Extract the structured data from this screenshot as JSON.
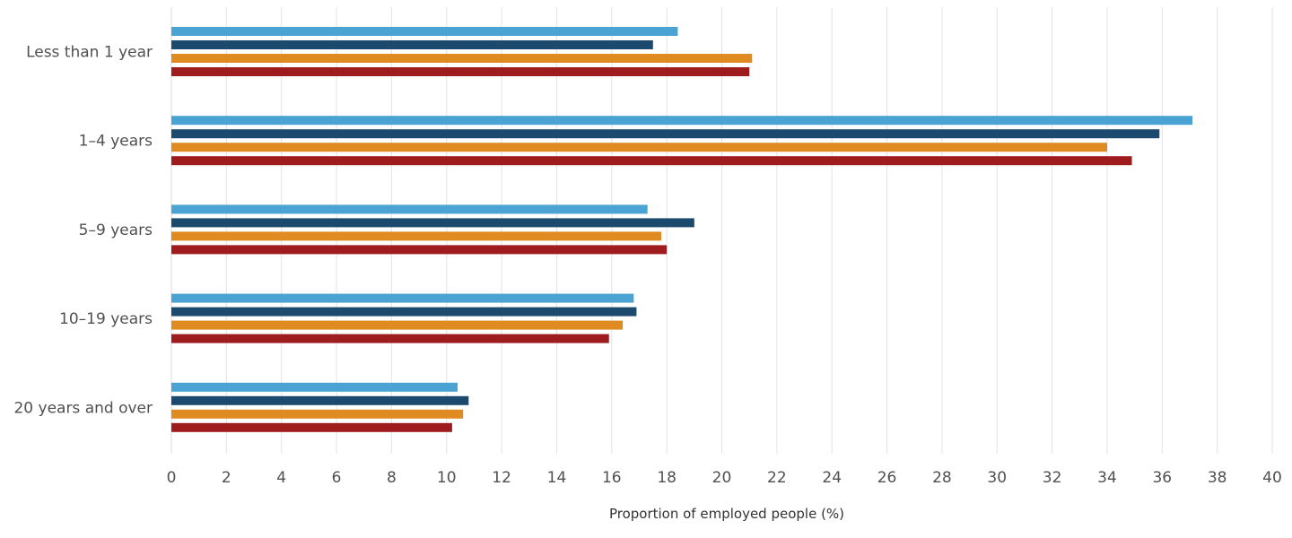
{
  "chart_data": {
    "type": "bar",
    "orientation": "horizontal",
    "categories": [
      "Less than 1 year",
      "1–4 years",
      "5–9 years",
      "10–19 years",
      "20 years and over"
    ],
    "series": [
      {
        "color": "#4aa3d3",
        "values": [
          18.4,
          37.1,
          17.3,
          16.8,
          10.4
        ]
      },
      {
        "color": "#1b4a6e",
        "values": [
          17.5,
          35.9,
          19.0,
          16.9,
          10.8
        ]
      },
      {
        "color": "#e08a22",
        "values": [
          21.1,
          34.0,
          17.8,
          16.4,
          10.6
        ]
      },
      {
        "color": "#9e1b1e",
        "values": [
          21.0,
          34.9,
          18.0,
          15.9,
          10.2
        ]
      }
    ],
    "xlabel": "Proportion of employed people (%)",
    "xlim": [
      0,
      40
    ],
    "xticks": [
      "0",
      "2",
      "4",
      "6",
      "8",
      "10",
      "12",
      "14",
      "16",
      "18",
      "20",
      "22",
      "24",
      "26",
      "28",
      "30",
      "32",
      "34",
      "36",
      "38",
      "40"
    ],
    "grid": "vertical",
    "legend": "none"
  }
}
